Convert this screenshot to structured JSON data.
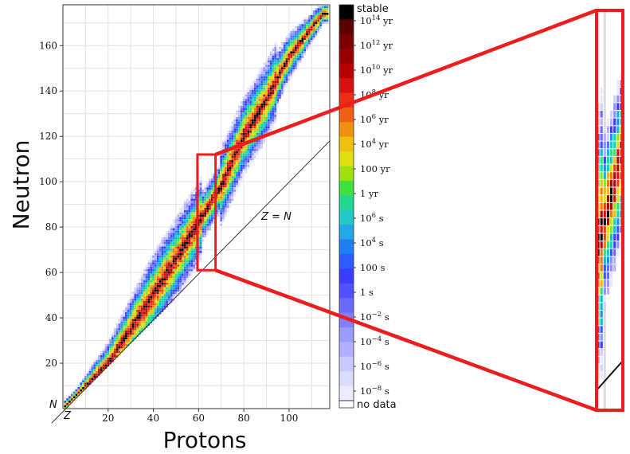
{
  "chart_data": {
    "type": "heatmap",
    "title": "",
    "xlabel": "Protons",
    "ylabel": "Neutron",
    "xlim": [
      0,
      118
    ],
    "ylim": [
      0,
      178
    ],
    "x_ticks": [
      "20",
      "40",
      "60",
      "80",
      "100"
    ],
    "y_ticks": [
      "20",
      "40",
      "60",
      "80",
      "100",
      "120",
      "140",
      "160"
    ],
    "corner_labels": {
      "n": "N",
      "z": "Z"
    },
    "annotation": "Z = N",
    "grid": true,
    "colorbar": {
      "top_label": "stable",
      "bottom_label": "no data",
      "levels": [
        {
          "base": "10",
          "exp": "14",
          "unit": "yr"
        },
        {
          "base": "10",
          "exp": "12",
          "unit": "yr"
        },
        {
          "base": "10",
          "exp": "10",
          "unit": "yr"
        },
        {
          "base": "10",
          "exp": "8",
          "unit": "yr"
        },
        {
          "base": "10",
          "exp": "6",
          "unit": "yr"
        },
        {
          "base": "10",
          "exp": "4",
          "unit": "yr"
        },
        {
          "base": "100",
          "exp": "",
          "unit": "yr"
        },
        {
          "base": "1",
          "exp": "",
          "unit": "yr"
        },
        {
          "base": "10",
          "exp": "6",
          "unit": "s"
        },
        {
          "base": "10",
          "exp": "4",
          "unit": "s"
        },
        {
          "base": "100",
          "exp": "",
          "unit": "s"
        },
        {
          "base": "1",
          "exp": "",
          "unit": "s"
        },
        {
          "base": "10",
          "exp": "−2",
          "unit": "s"
        },
        {
          "base": "10",
          "exp": "−4",
          "unit": "s"
        },
        {
          "base": "10",
          "exp": "−6",
          "unit": "s"
        },
        {
          "base": "10",
          "exp": "−8",
          "unit": "s"
        }
      ]
    },
    "valley_of_stability": [
      [
        1,
        1
      ],
      [
        10,
        10
      ],
      [
        20,
        20
      ],
      [
        30,
        35
      ],
      [
        40,
        50
      ],
      [
        50,
        66
      ],
      [
        60,
        82
      ],
      [
        70,
        98
      ],
      [
        80,
        120
      ],
      [
        90,
        136
      ],
      [
        100,
        155
      ],
      [
        115,
        174
      ]
    ],
    "zoom_region": {
      "z_range": [
        60,
        67
      ],
      "n_range": [
        61,
        112
      ]
    },
    "highlight_color": "#ee1c1c"
  }
}
